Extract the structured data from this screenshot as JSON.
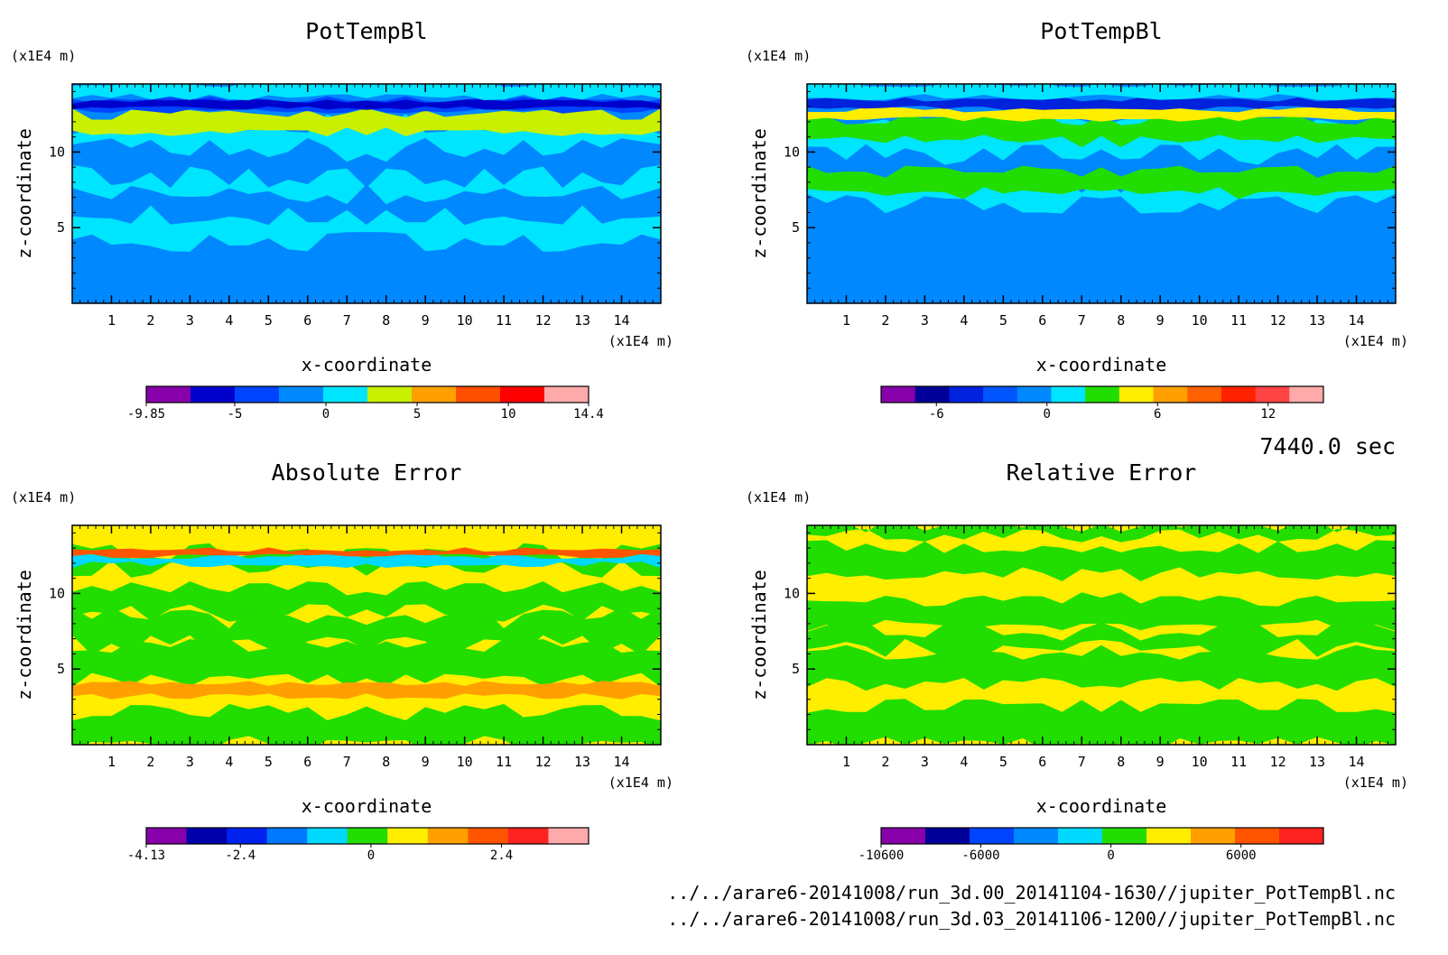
{
  "time_label": "7440.0 sec",
  "footer": {
    "file1": "../../arare6-20141008/run_3d.00_20141104-1630//jupiter_PotTempBl.nc",
    "file2": "../../arare6-20141008/run_3d.03_20141106-1200//jupiter_PotTempBl.nc"
  },
  "chart_data": [
    {
      "type": "heatmap",
      "title": "PotTempBl",
      "xlabel": "x-coordinate",
      "ylabel": "z-coordinate",
      "x_unit": "(x1E4 m)",
      "y_unit": "(x1E4 m)",
      "xlim": [
        0,
        15
      ],
      "ylim": [
        0,
        14.5
      ],
      "xticks": [
        1,
        2,
        3,
        4,
        5,
        6,
        7,
        8,
        9,
        10,
        11,
        12,
        13,
        14
      ],
      "yticks": [
        5,
        10
      ],
      "colorbar": {
        "min": -9.85,
        "max": 14.4,
        "tick_values": [
          -9.85,
          -5,
          0,
          5,
          10,
          14.4
        ],
        "tick_labels": [
          "-9.85",
          "-5",
          "0",
          "5",
          "10",
          "14.4"
        ],
        "colors": [
          "#8800aa",
          "#0000cc",
          "#0044ff",
          "#0088ff",
          "#00e5ff",
          "#c8f000",
          "#ffa000",
          "#ff5000",
          "#ff0000",
          "#ffaaaa"
        ]
      }
    },
    {
      "type": "heatmap",
      "title": "PotTempBl",
      "xlabel": "x-coordinate",
      "ylabel": "z-coordinate",
      "x_unit": "(x1E4 m)",
      "y_unit": "(x1E4 m)",
      "xlim": [
        0,
        15
      ],
      "ylim": [
        0,
        14.5
      ],
      "xticks": [
        1,
        2,
        3,
        4,
        5,
        6,
        7,
        8,
        9,
        10,
        11,
        12,
        13,
        14
      ],
      "yticks": [
        5,
        10
      ],
      "colorbar": {
        "min": -9,
        "max": 15,
        "tick_values": [
          -6,
          0,
          6,
          12
        ],
        "tick_labels": [
          "-6",
          "0",
          "6",
          "12"
        ],
        "colors": [
          "#8800aa",
          "#000099",
          "#0022dd",
          "#0055ff",
          "#0088ff",
          "#00e5ff",
          "#22dd00",
          "#ffee00",
          "#ffa000",
          "#ff6000",
          "#ff2200",
          "#ff4444",
          "#ffaaaa"
        ]
      }
    },
    {
      "type": "heatmap",
      "title": "Absolute Error",
      "xlabel": "x-coordinate",
      "ylabel": "z-coordinate",
      "x_unit": "(x1E4 m)",
      "y_unit": "(x1E4 m)",
      "xlim": [
        0,
        15
      ],
      "ylim": [
        0,
        14.5
      ],
      "xticks": [
        1,
        2,
        3,
        4,
        5,
        6,
        7,
        8,
        9,
        10,
        11,
        12,
        13,
        14
      ],
      "yticks": [
        5,
        10
      ],
      "colorbar": {
        "min": -4.13,
        "max": 4.0,
        "tick_values": [
          -4.13,
          -2.4,
          0,
          2.4
        ],
        "tick_labels": [
          "-4.13",
          "-2.4",
          "0",
          "2.4"
        ],
        "colors": [
          "#8800aa",
          "#0000aa",
          "#0022ee",
          "#0077ff",
          "#00d8ff",
          "#22dd00",
          "#ffee00",
          "#ffa000",
          "#ff5500",
          "#ff2222",
          "#ffaaaa"
        ]
      }
    },
    {
      "type": "heatmap",
      "title": "Relative Error",
      "xlabel": "x-coordinate",
      "ylabel": "z-coordinate",
      "x_unit": "(x1E4 m)",
      "y_unit": "(x1E4 m)",
      "xlim": [
        0,
        15
      ],
      "ylim": [
        0,
        14.5
      ],
      "xticks": [
        1,
        2,
        3,
        4,
        5,
        6,
        7,
        8,
        9,
        10,
        11,
        12,
        13,
        14
      ],
      "yticks": [
        5,
        10
      ],
      "colorbar": {
        "min": -10600,
        "max": 9800,
        "tick_values": [
          -10600,
          -6000,
          0,
          6000
        ],
        "tick_labels": [
          "-10600",
          "-6000",
          "0",
          "6000"
        ],
        "colors": [
          "#8800aa",
          "#000099",
          "#0044ff",
          "#0088ff",
          "#00d8ff",
          "#22dd00",
          "#ffee00",
          "#ffa000",
          "#ff5500",
          "#ff2222"
        ]
      }
    }
  ]
}
